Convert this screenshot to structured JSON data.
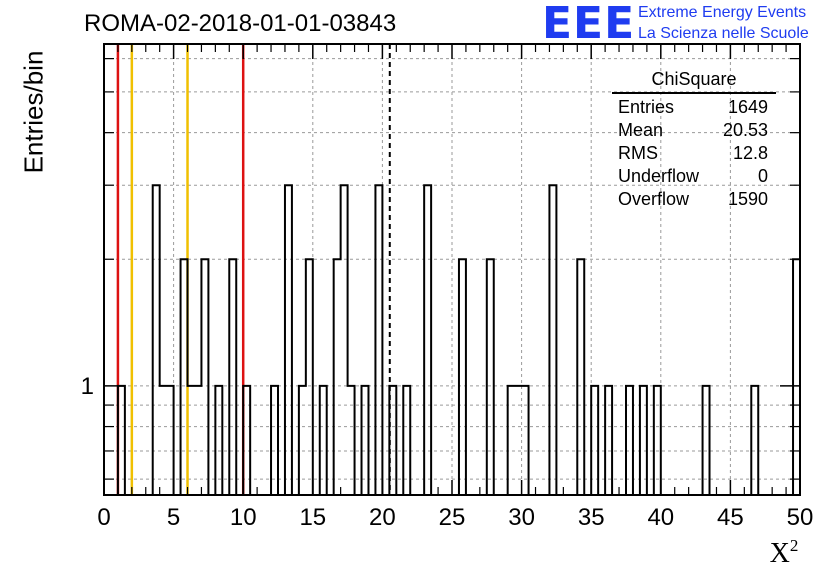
{
  "header": {
    "title": "ROMA-02-2018-01-01-03843",
    "logo_mark": "EEE",
    "logo_line1": "Extreme Energy Events",
    "logo_line2": "La Scienza nelle Scuole"
  },
  "stats_box": {
    "title": "ChiSquare",
    "rows": [
      {
        "label": "Entries",
        "value": "1649"
      },
      {
        "label": "Mean",
        "value": "20.53"
      },
      {
        "label": "RMS",
        "value": "12.8"
      },
      {
        "label": "Underflow",
        "value": "0"
      },
      {
        "label": "Overflow",
        "value": "1590"
      }
    ]
  },
  "colors": {
    "red_line": "#dd1111",
    "yellow_line": "#f0c000",
    "logo_blue": "#1f3cf0"
  },
  "chart_data": {
    "type": "histogram",
    "title": "ROMA-02-2018-01-01-03843",
    "xlabel": "X²",
    "ylabel": "Entries/bin",
    "y_scale": "log",
    "xlim": [
      0,
      50
    ],
    "ylim": [
      0.55,
      6.5
    ],
    "bin_width": 0.5,
    "x_ticks": [
      "0",
      "5",
      "10",
      "15",
      "20",
      "25",
      "30",
      "35",
      "40",
      "45",
      "50"
    ],
    "y_ticks": [
      "1"
    ],
    "grid": true,
    "bins": [
      {
        "x": 1.0,
        "count": 1
      },
      {
        "x": 3.5,
        "count": 3
      },
      {
        "x": 4.0,
        "count": 1
      },
      {
        "x": 4.5,
        "count": 1
      },
      {
        "x": 5.5,
        "count": 2
      },
      {
        "x": 6.0,
        "count": 1
      },
      {
        "x": 6.5,
        "count": 1
      },
      {
        "x": 7.0,
        "count": 2
      },
      {
        "x": 8.0,
        "count": 1
      },
      {
        "x": 9.0,
        "count": 2
      },
      {
        "x": 10.0,
        "count": 1
      },
      {
        "x": 12.0,
        "count": 1
      },
      {
        "x": 13.0,
        "count": 3
      },
      {
        "x": 14.0,
        "count": 1
      },
      {
        "x": 14.5,
        "count": 2
      },
      {
        "x": 15.5,
        "count": 1
      },
      {
        "x": 16.5,
        "count": 2
      },
      {
        "x": 17.0,
        "count": 3
      },
      {
        "x": 17.5,
        "count": 1
      },
      {
        "x": 18.5,
        "count": 1
      },
      {
        "x": 19.5,
        "count": 3
      },
      {
        "x": 20.5,
        "count": 1
      },
      {
        "x": 21.5,
        "count": 1
      },
      {
        "x": 23.0,
        "count": 3
      },
      {
        "x": 25.5,
        "count": 2
      },
      {
        "x": 27.5,
        "count": 2
      },
      {
        "x": 29.0,
        "count": 1
      },
      {
        "x": 29.5,
        "count": 1
      },
      {
        "x": 30.0,
        "count": 1
      },
      {
        "x": 32.0,
        "count": 3
      },
      {
        "x": 34.0,
        "count": 2
      },
      {
        "x": 35.0,
        "count": 1
      },
      {
        "x": 36.0,
        "count": 1
      },
      {
        "x": 37.5,
        "count": 1
      },
      {
        "x": 38.5,
        "count": 1
      },
      {
        "x": 39.5,
        "count": 1
      },
      {
        "x": 43.0,
        "count": 1
      },
      {
        "x": 46.5,
        "count": 1
      },
      {
        "x": 49.5,
        "count": 2
      }
    ],
    "vertical_lines": [
      {
        "x": 1.0,
        "color": "red",
        "style": "solid"
      },
      {
        "x": 2.0,
        "color": "yellow",
        "style": "solid"
      },
      {
        "x": 6.0,
        "color": "yellow",
        "style": "solid"
      },
      {
        "x": 10.0,
        "color": "red",
        "style": "solid"
      },
      {
        "x": 20.53,
        "color": "black",
        "style": "dashed"
      }
    ]
  }
}
